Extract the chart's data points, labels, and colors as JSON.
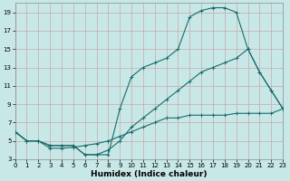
{
  "xlabel": "Humidex (Indice chaleur)",
  "bg_color": "#c8e8e8",
  "grid_color": "#c8a8a8",
  "line_color": "#1a6b6b",
  "xlim": [
    0,
    23
  ],
  "ylim": [
    3,
    20
  ],
  "xticks": [
    0,
    1,
    2,
    3,
    4,
    5,
    6,
    7,
    8,
    9,
    10,
    11,
    12,
    13,
    14,
    15,
    16,
    17,
    18,
    19,
    20,
    21,
    22,
    23
  ],
  "yticks": [
    3,
    5,
    7,
    9,
    11,
    13,
    15,
    17,
    19
  ],
  "curve1_x": [
    0,
    1,
    2,
    3,
    4,
    5,
    6,
    7,
    8,
    9,
    10,
    11,
    12,
    13,
    14,
    15,
    16,
    17,
    18,
    19,
    20,
    21,
    22,
    23
  ],
  "curve1_y": [
    6.0,
    5.0,
    5.0,
    4.5,
    4.5,
    4.5,
    3.5,
    3.5,
    3.5,
    8.5,
    12.0,
    13.0,
    13.5,
    14.0,
    15.0,
    18.5,
    19.2,
    19.5,
    19.5,
    19.0,
    15.0,
    12.5,
    10.5,
    8.5
  ],
  "curve2_x": [
    0,
    1,
    2,
    3,
    4,
    5,
    6,
    7,
    8,
    9,
    10,
    11,
    12,
    13,
    14,
    15,
    16,
    17,
    18,
    19,
    20,
    21,
    22,
    23
  ],
  "curve2_y": [
    6.0,
    5.0,
    5.0,
    4.5,
    4.5,
    4.5,
    3.5,
    3.5,
    4.0,
    5.0,
    6.5,
    7.5,
    8.5,
    9.5,
    10.5,
    11.5,
    12.5,
    13.0,
    13.5,
    14.0,
    15.0,
    12.5,
    10.5,
    8.5
  ],
  "curve3_x": [
    0,
    1,
    2,
    3,
    4,
    5,
    6,
    7,
    8,
    9,
    10,
    11,
    12,
    13,
    14,
    15,
    16,
    17,
    18,
    19,
    20,
    21,
    22,
    23
  ],
  "curve3_y": [
    6.0,
    5.0,
    5.0,
    4.2,
    4.2,
    4.3,
    4.5,
    4.7,
    5.0,
    5.5,
    6.0,
    6.5,
    7.0,
    7.5,
    7.5,
    7.8,
    7.8,
    7.8,
    7.8,
    8.0,
    8.0,
    8.0,
    8.0,
    8.5
  ]
}
